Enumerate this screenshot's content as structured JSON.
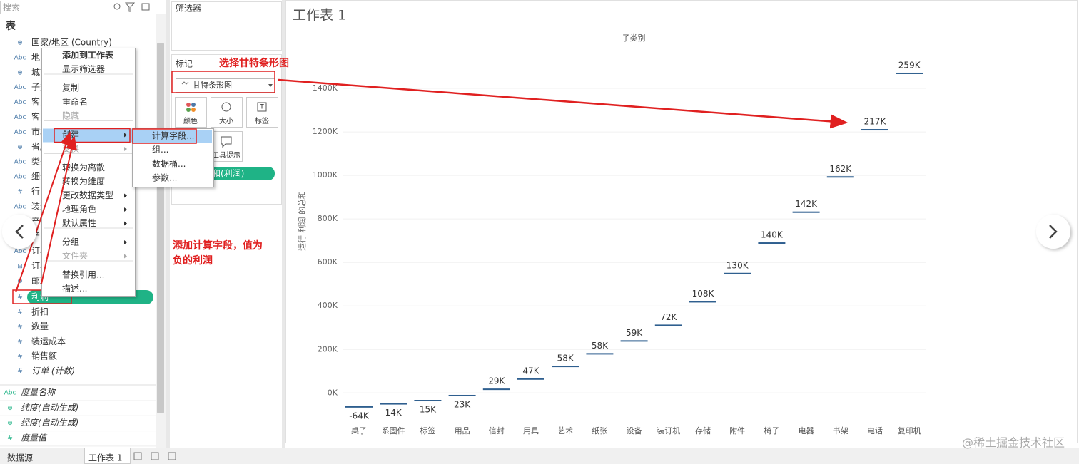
{
  "search_placeholder": "搜索",
  "data_pane": {
    "title": "表",
    "dimensions": [
      {
        "icon": "⊕",
        "name": "国家/地区 (Country)"
      },
      {
        "icon": "Abc",
        "name": "地区"
      },
      {
        "icon": "⊕",
        "name": "城市"
      },
      {
        "icon": "Abc",
        "name": "子类别"
      },
      {
        "icon": "Abc",
        "name": "客户 ID"
      },
      {
        "icon": "Abc",
        "name": "客户名称"
      },
      {
        "icon": "Abc",
        "name": "市场"
      },
      {
        "icon": "⊕",
        "name": "省/自治区"
      },
      {
        "icon": "Abc",
        "name": "类别"
      },
      {
        "icon": "Abc",
        "name": "细分"
      },
      {
        "icon": "#",
        "name": "行 ID"
      },
      {
        "icon": "Abc",
        "name": "装运方式"
      },
      {
        "icon": "Abc",
        "name": "产品 ID"
      },
      {
        "icon": "Abc",
        "name": "产品名称"
      },
      {
        "icon": "Abc",
        "name": "订单 ID"
      },
      {
        "icon": "⊟",
        "name": "订单日期"
      },
      {
        "icon": "⊕",
        "name": "邮政编码"
      }
    ],
    "measures": [
      {
        "icon": "#",
        "name": "利润"
      },
      {
        "icon": "#",
        "name": "折扣"
      },
      {
        "icon": "#",
        "name": "数量"
      },
      {
        "icon": "#",
        "name": "装运成本"
      },
      {
        "icon": "#",
        "name": "销售额"
      },
      {
        "icon": "#",
        "name": "订单 (计数)"
      }
    ],
    "generated": [
      {
        "icon": "Abc",
        "name": "度量名称"
      },
      {
        "icon": "⊕",
        "name": "纬度(自动生成)"
      },
      {
        "icon": "⊕",
        "name": "经度(自动生成)"
      },
      {
        "icon": "#",
        "name": "度量值"
      }
    ]
  },
  "context_menu": {
    "groups": [
      [
        {
          "text": "添加到工作表"
        },
        {
          "text": "显示筛选器"
        }
      ],
      [
        {
          "text": "复制"
        },
        {
          "text": "重命名"
        },
        {
          "text": "隐藏",
          "disabled": true
        }
      ],
      [
        {
          "text": "创建",
          "arrow": true,
          "highlighted": true
        },
        {
          "text": "变换",
          "arrow": true,
          "disabled": true
        }
      ],
      [
        {
          "text": "转换为离散"
        },
        {
          "text": "转换为维度"
        },
        {
          "text": "更改数据类型",
          "arrow": true
        },
        {
          "text": "地理角色",
          "arrow": true
        },
        {
          "text": "默认属性",
          "arrow": true
        }
      ],
      [
        {
          "text": "分组",
          "arrow": true
        },
        {
          "text": "文件夹",
          "arrow": true,
          "disabled": true
        }
      ],
      [
        {
          "text": "替换引用..."
        },
        {
          "text": "描述..."
        }
      ]
    ],
    "submenu": [
      {
        "text": "计算字段...",
        "highlighted": true
      },
      {
        "text": "组..."
      },
      {
        "text": "数据桶..."
      },
      {
        "text": "参数..."
      }
    ]
  },
  "filters_title": "筛选器",
  "marks": {
    "title": "标记",
    "mark_type": "甘特条形图",
    "buttons": [
      "颜色",
      "大小",
      "标签",
      "工具提示"
    ],
    "pill": "总和(利润)"
  },
  "annotations": [
    "选择甘特条形图",
    "添加计算字段，值为",
    "负的利润"
  ],
  "tabs": [
    "数据源",
    "工作表 1"
  ],
  "watermark": "@稀土掘金技术社区",
  "chart_data": {
    "type": "gantt",
    "title": "工作表 1",
    "x_label": "子类别",
    "y_label": "运行 利润 的总和",
    "categories": [
      "桌子",
      "系固件",
      "标签",
      "用品",
      "信封",
      "用具",
      "艺术",
      "纸张",
      "设备",
      "装订机",
      "存储",
      "附件",
      "椅子",
      "电器",
      "书架",
      "电话",
      "复印机"
    ],
    "values": [
      -64,
      14,
      15,
      23,
      29,
      47,
      58,
      58,
      59,
      72,
      108,
      130,
      140,
      142,
      162,
      217,
      259
    ],
    "value_labels": [
      "-64K",
      "14K",
      "15K",
      "23K",
      "29K",
      "47K",
      "58K",
      "58K",
      "59K",
      "72K",
      "108K",
      "130K",
      "140K",
      "142K",
      "162K",
      "217K",
      "259K"
    ],
    "color": "#2f5f8f",
    "ylim": [
      -130,
      1600
    ],
    "yticks": [
      {
        "value": 0,
        "label": "0K"
      },
      {
        "value": 200,
        "label": "200K"
      },
      {
        "value": 400,
        "label": "400K"
      },
      {
        "value": 600,
        "label": "600K"
      },
      {
        "value": 800,
        "label": "800K"
      },
      {
        "value": 1000,
        "label": "1000K"
      },
      {
        "value": 1200,
        "label": "1200K"
      },
      {
        "value": 1400,
        "label": "1400K"
      }
    ],
    "grid": true
  }
}
